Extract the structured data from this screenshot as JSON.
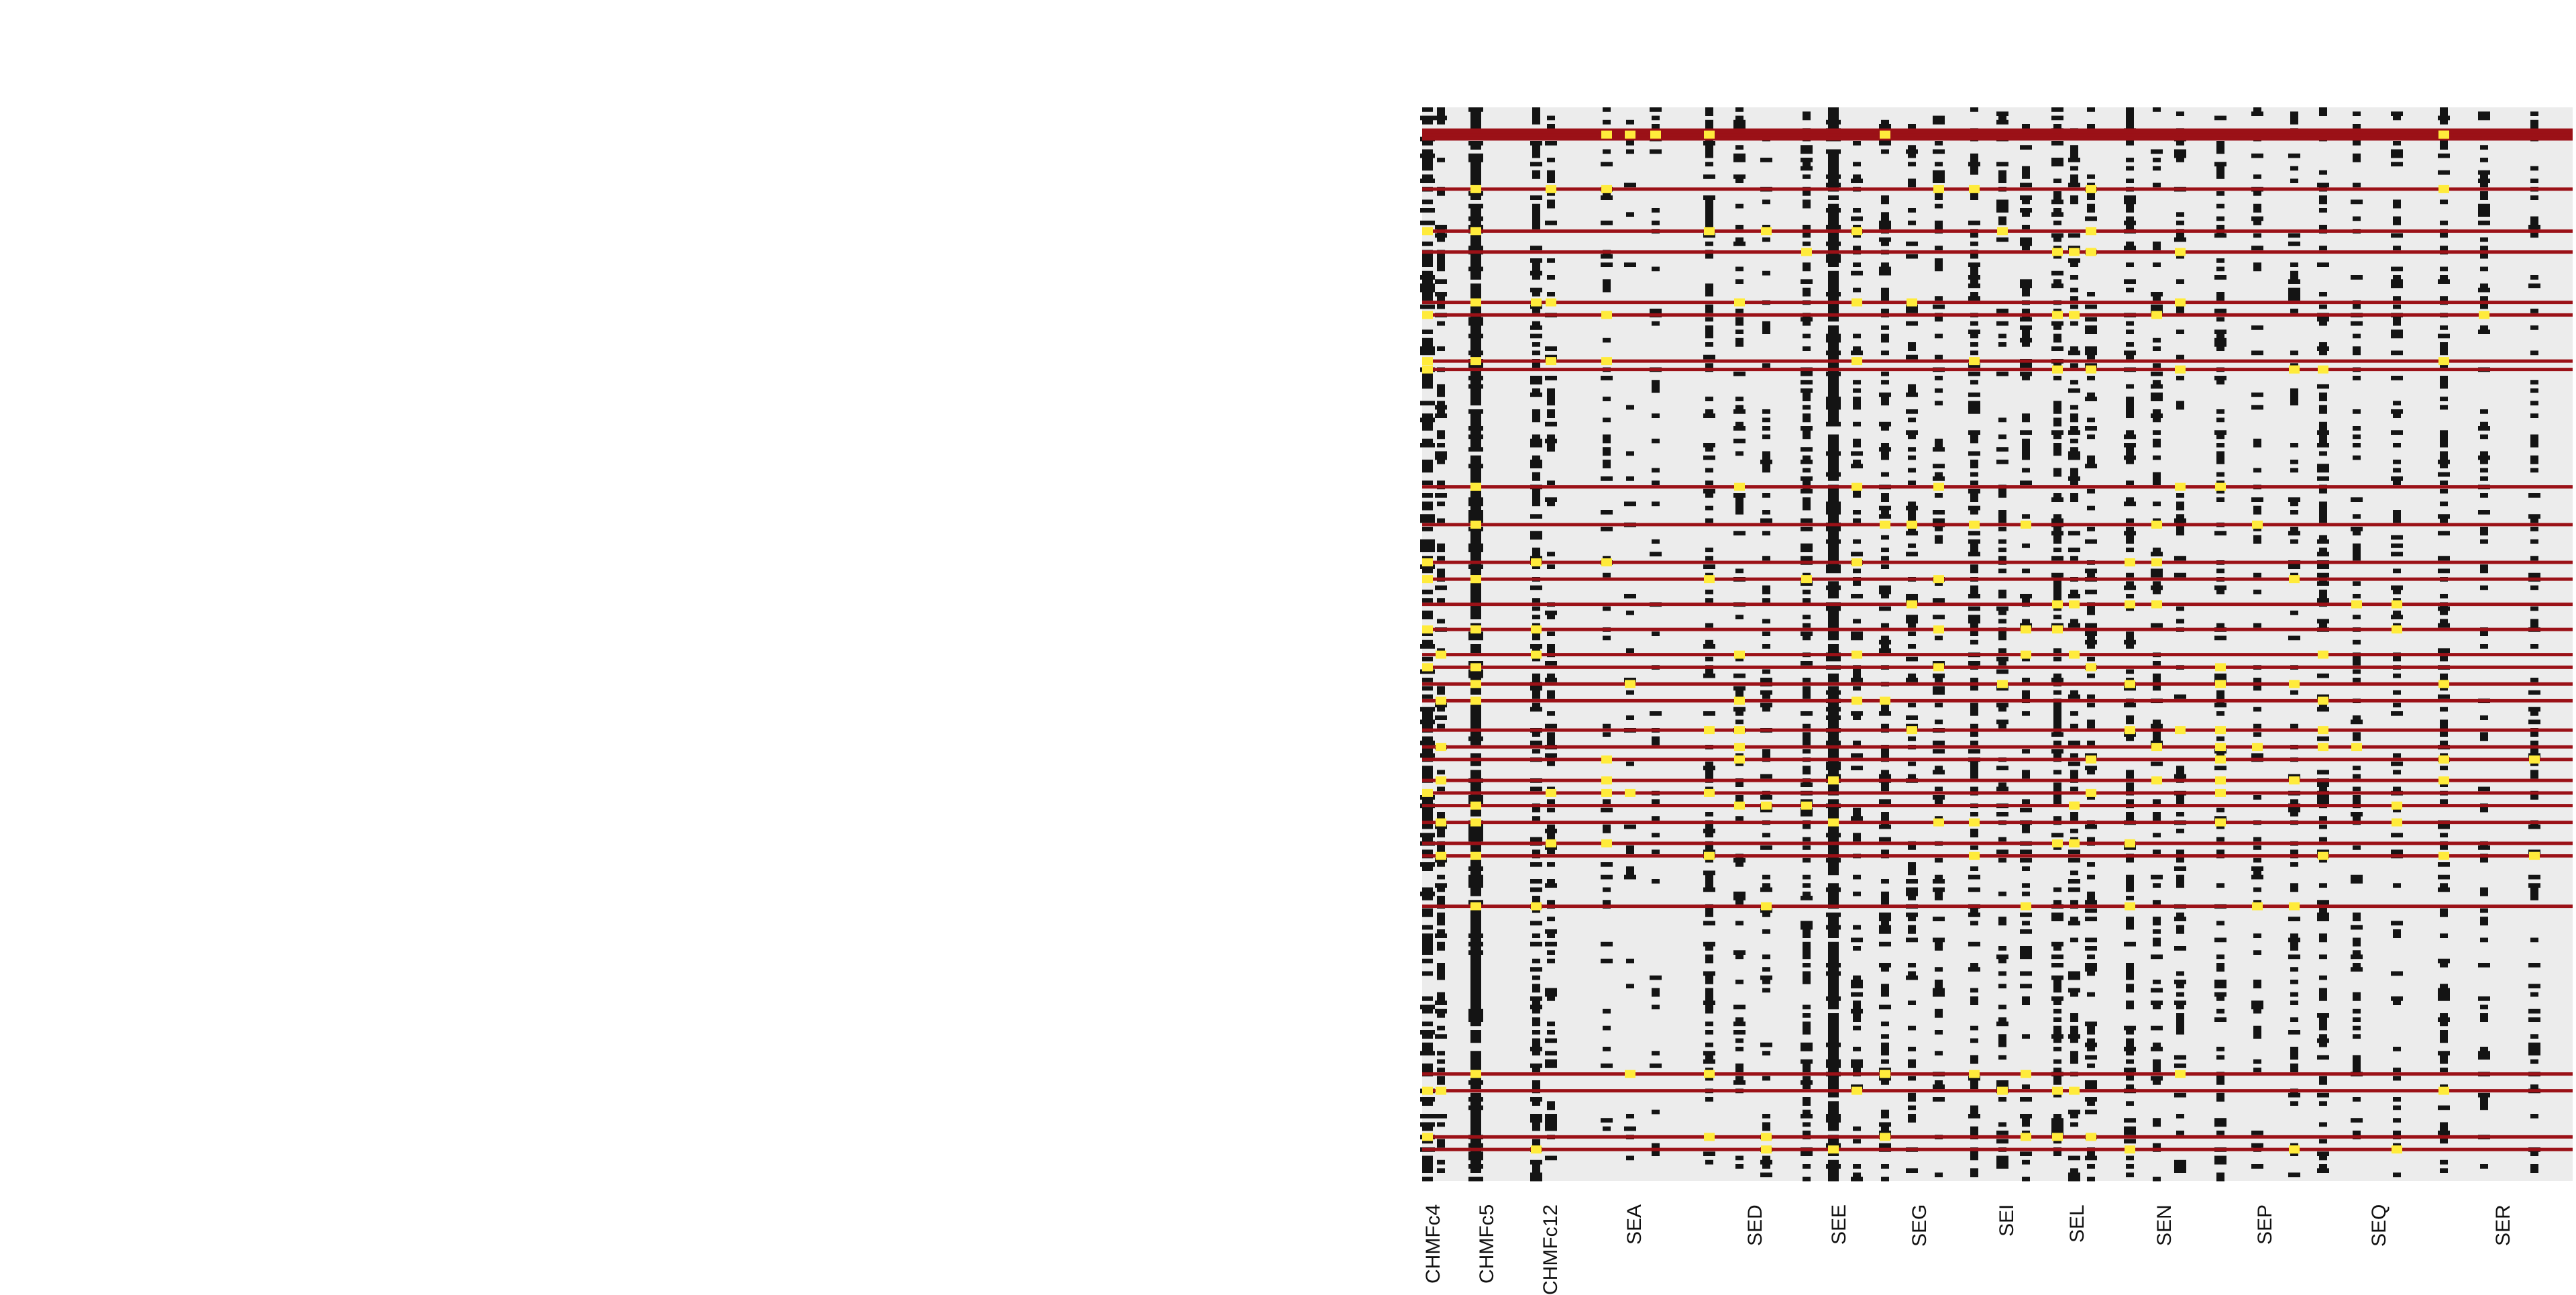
{
  "chart_data": {
    "type": "heatmap",
    "title": "",
    "xlabel": "",
    "ylabel": "",
    "legend": "none",
    "grid": false,
    "colors": {
      "background": "#ececec",
      "cell": "#141414",
      "highlight": "#ffeb3b",
      "row_line": "#9b1117"
    },
    "columns": [
      "CHMFc4",
      "CHMFc5",
      "CHMFc12",
      "SEA",
      "SED",
      "SEE",
      "SEG",
      "SEI",
      "SEL",
      "SEN",
      "SEP",
      "SEQ",
      "SER"
    ]
  }
}
